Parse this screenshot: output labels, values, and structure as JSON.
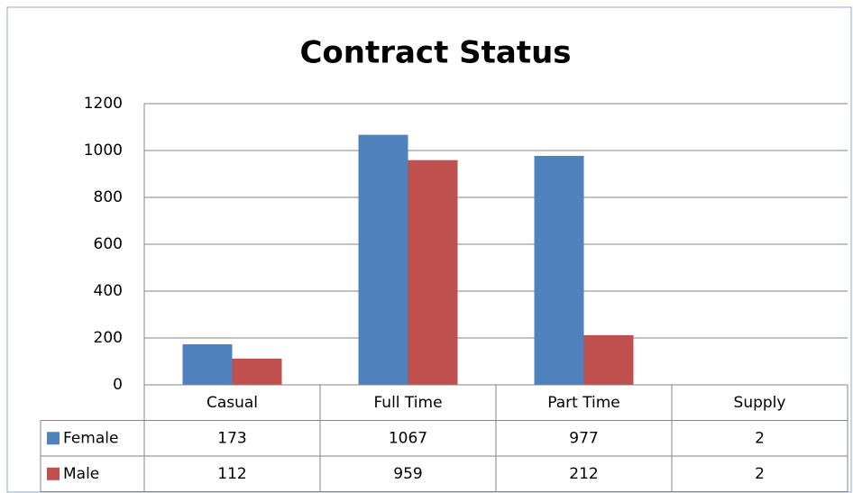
{
  "chart_data": {
    "type": "bar",
    "title": "Contract Status",
    "categories": [
      "Casual",
      "Full Time",
      "Part Time",
      "Supply"
    ],
    "series": [
      {
        "name": "Female",
        "color": "#4f81bd",
        "values": [
          173,
          1067,
          977,
          2
        ]
      },
      {
        "name": "Male",
        "color": "#c0504d",
        "values": [
          112,
          959,
          212,
          2
        ]
      }
    ],
    "ylim": [
      0,
      1200
    ],
    "yticks": [
      0,
      200,
      400,
      600,
      800,
      1000,
      1200
    ],
    "grid": true,
    "data_table": true
  }
}
